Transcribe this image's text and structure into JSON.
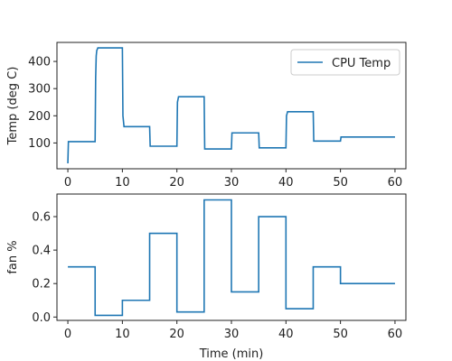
{
  "chart_data": [
    {
      "type": "line",
      "id": "temp",
      "ylabel": "Temp (deg C)",
      "xlabel": "",
      "xlim": [
        -2,
        62
      ],
      "ylim": [
        5,
        470
      ],
      "xticks": [
        0,
        10,
        20,
        30,
        40,
        50,
        60
      ],
      "yticks": [
        100,
        200,
        300,
        400
      ],
      "legend": {
        "position": "top-right",
        "entries": [
          "CPU Temp"
        ]
      },
      "grid": false,
      "series": [
        {
          "name": "CPU Temp",
          "color": "#1f77b4",
          "x": [
            0,
            0.1,
            5,
            5.1,
            5.2,
            5.3,
            5.5,
            10,
            10.1,
            10.3,
            15,
            15.1,
            20,
            20.1,
            20.3,
            25,
            25.1,
            30,
            30.1,
            35,
            35.1,
            40,
            40.1,
            40.3,
            45,
            45.1,
            50,
            50.1,
            60
          ],
          "y": [
            25,
            105,
            105,
            340,
            420,
            440,
            450,
            450,
            200,
            160,
            160,
            88,
            88,
            250,
            270,
            270,
            78,
            78,
            137,
            137,
            82,
            82,
            200,
            215,
            215,
            107,
            107,
            122,
            122
          ]
        }
      ]
    },
    {
      "type": "line",
      "id": "fan",
      "ylabel": "fan %",
      "xlabel": "Time (min)",
      "xlim": [
        -2,
        62
      ],
      "ylim": [
        -0.02,
        0.735
      ],
      "xticks": [
        0,
        10,
        20,
        30,
        40,
        50,
        60
      ],
      "yticks": [
        0.0,
        0.2,
        0.4,
        0.6
      ],
      "grid": false,
      "series": [
        {
          "name": "",
          "color": "#1f77b4",
          "x": [
            0,
            5,
            5,
            10,
            10,
            15,
            15,
            20,
            20,
            25,
            25,
            30,
            30,
            35,
            35,
            40,
            40,
            45,
            45,
            50,
            50,
            60
          ],
          "y": [
            0.3,
            0.3,
            0.01,
            0.01,
            0.1,
            0.1,
            0.5,
            0.5,
            0.03,
            0.03,
            0.7,
            0.7,
            0.15,
            0.15,
            0.6,
            0.6,
            0.05,
            0.05,
            0.3,
            0.3,
            0.2,
            0.2
          ]
        }
      ]
    }
  ]
}
